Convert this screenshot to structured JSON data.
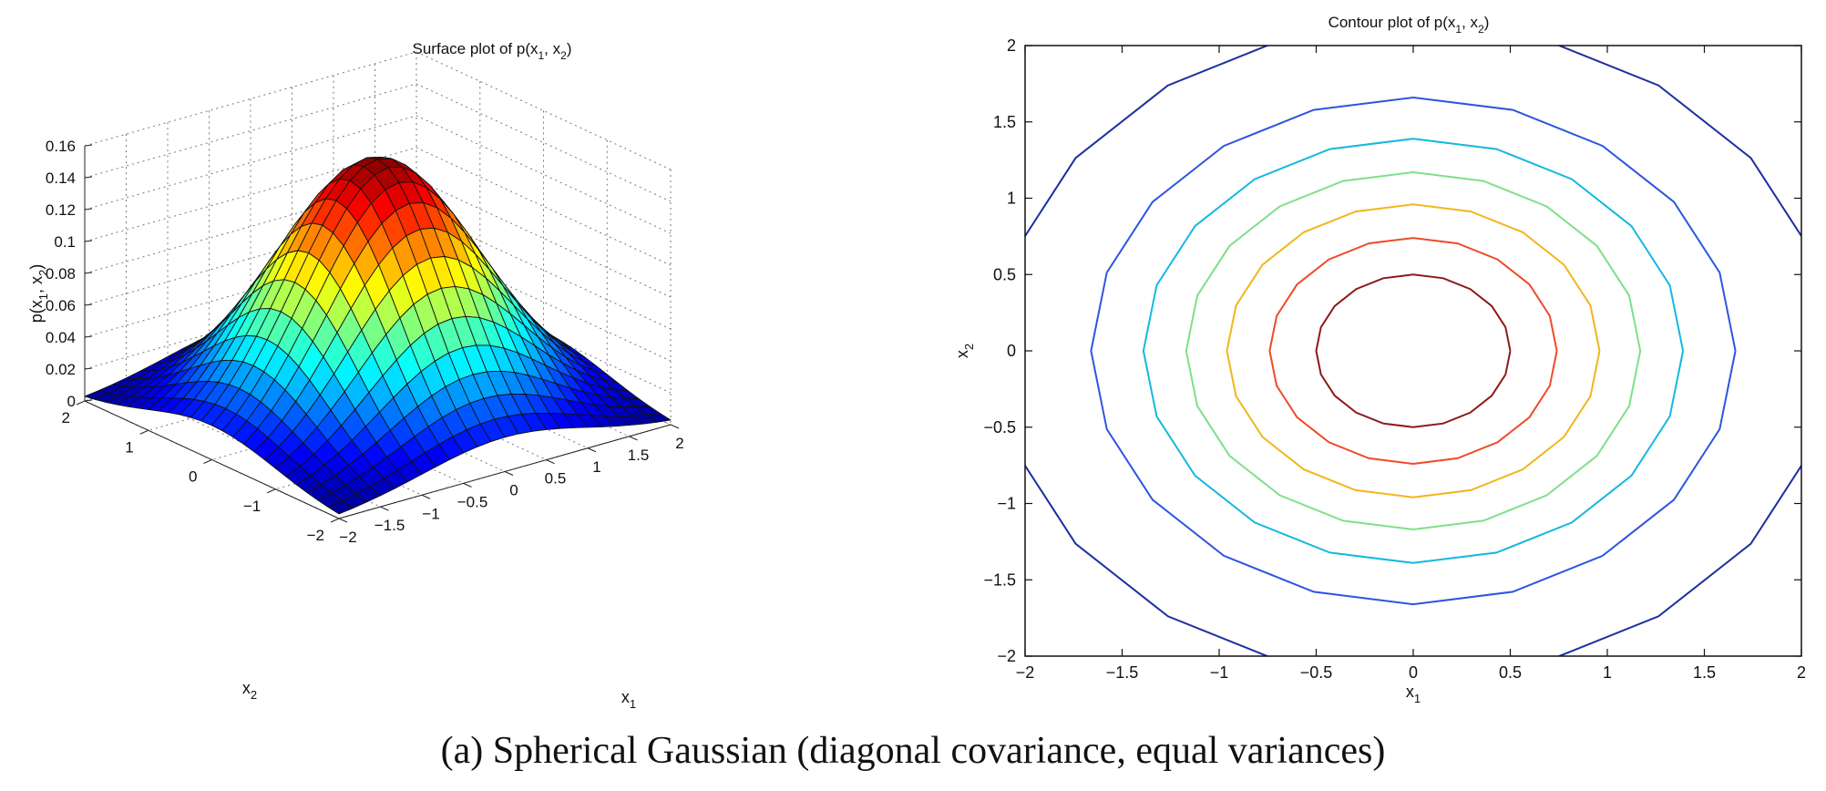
{
  "caption": "(a) Spherical Gaussian (diagonal covariance, equal variances)",
  "chart_data": [
    {
      "type": "surface",
      "title_parts": [
        "Surface plot of p(x",
        "1",
        ", x",
        "2",
        ")"
      ],
      "xlabel_parts": [
        "x",
        "1"
      ],
      "ylabel_parts": [
        "x",
        "2"
      ],
      "zlabel_parts": [
        "p(x",
        "1",
        ", x",
        "2",
        ")"
      ],
      "function": "p(x1,x2) = exp(-(x1^2+x2^2)/2) / (2*pi)",
      "x1_range": [
        -2,
        2
      ],
      "x2_range": [
        -2,
        2
      ],
      "zlim": [
        0,
        0.16
      ],
      "x1_ticks": [
        "-2",
        "-1.5",
        "-1",
        "-0.5",
        "0",
        "0.5",
        "1",
        "1.5",
        "2"
      ],
      "x2_ticks": [
        "-2",
        "-1",
        "0",
        "1",
        "2"
      ],
      "z_ticks": [
        "0",
        "0.02",
        "0.04",
        "0.06",
        "0.08",
        "0.1",
        "0.12",
        "0.14",
        "0.16"
      ],
      "peak": {
        "x1": 0,
        "x2": 0,
        "z": 0.159
      },
      "grid": true,
      "colormap": "jet"
    },
    {
      "type": "contour",
      "title_parts": [
        "Contour plot of p(x",
        "1",
        ", x",
        "2",
        ")"
      ],
      "xlabel_parts": [
        "x",
        "1"
      ],
      "ylabel_parts": [
        "x",
        "2"
      ],
      "xlim": [
        -2,
        2
      ],
      "ylim": [
        -2,
        2
      ],
      "x_ticks": [
        "-2",
        "-1.5",
        "-1",
        "-0.5",
        "0",
        "0.5",
        "1",
        "1.5",
        "2"
      ],
      "y_ticks": [
        "-2",
        "-1.5",
        "-1",
        "-0.5",
        "0",
        "0.5",
        "1",
        "1.5",
        "2"
      ],
      "contour_radii": [
        2.15,
        1.66,
        1.39,
        1.17,
        0.96,
        0.74,
        0.5
      ],
      "contour_colors": [
        "#1c2f9e",
        "#2c55e0",
        "#14b8e0",
        "#7ee08a",
        "#f2b51c",
        "#f04a28",
        "#8b1a1a"
      ]
    }
  ]
}
